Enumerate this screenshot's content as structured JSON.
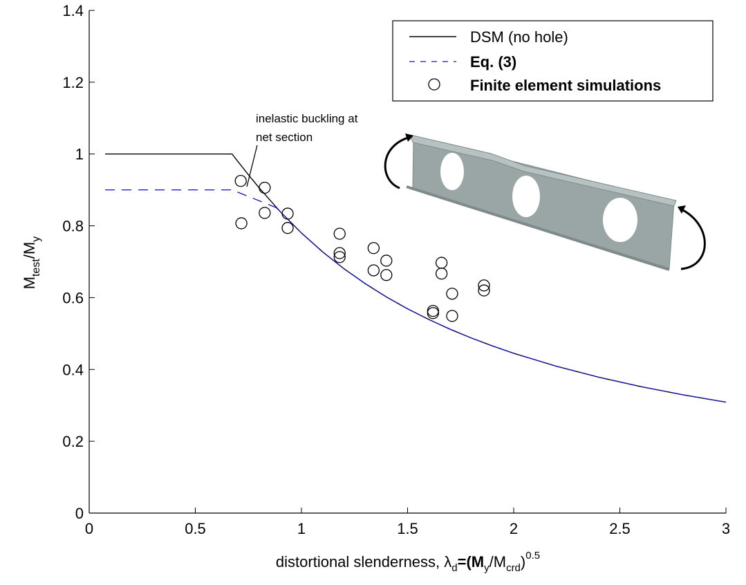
{
  "chart_data": {
    "type": "line",
    "title": "",
    "xlabel": "distortional slenderness, λ_d=(M_y/M_crd)^0.5",
    "xlabel_parts": {
      "main": "distortional slenderness, ",
      "lambda": "λ",
      "sub_d": "d",
      "eq": "=(M",
      "sub_y": "y",
      "slash": "/M",
      "sub_crd": "crd",
      "close": ")",
      "sup": "0.5"
    },
    "ylabel": "M_test/M_y",
    "ylabel_parts": {
      "m1": "M",
      "sub_test": "test",
      "slash": "/M",
      "sub_y": "y"
    },
    "xlim": [
      0,
      3
    ],
    "ylim": [
      0,
      1.4
    ],
    "xticks": [
      0,
      0.5,
      1,
      1.5,
      2,
      2.5,
      3
    ],
    "xtick_labels": [
      "0",
      "0.5",
      "1",
      "1.5",
      "2",
      "2.5",
      "3"
    ],
    "yticks": [
      0,
      0.2,
      0.4,
      0.6,
      0.8,
      1,
      1.2,
      1.4
    ],
    "ytick_labels": [
      "0",
      "0.2",
      "0.4",
      "0.6",
      "0.8",
      "1",
      "1.2",
      "1.4"
    ],
    "grid": false,
    "legend_position": "top-right",
    "legend": [
      "DSM (no hole)",
      "Eq. (3)",
      "Finite element simulations"
    ],
    "series": [
      {
        "name": "DSM (no hole)",
        "style": "solid",
        "color": "#000000",
        "x": [
          0.075,
          0.673,
          0.7,
          0.75,
          0.8,
          0.9,
          1.0,
          1.1,
          1.2,
          1.3,
          1.4,
          1.5,
          1.6,
          1.7,
          1.8,
          1.9,
          2.0,
          2.2,
          2.4,
          2.6,
          2.8,
          3.0
        ],
        "y": [
          1.0,
          1.0,
          0.9796,
          0.9422,
          0.9063,
          0.8395,
          0.78,
          0.7273,
          0.6806,
          0.6391,
          0.602,
          0.5689,
          0.5391,
          0.5121,
          0.4877,
          0.4654,
          0.445,
          0.4091,
          0.3785,
          0.3521,
          0.3291,
          0.3089
        ]
      },
      {
        "name": "Eq. (3)",
        "style": "dashed",
        "color": "#1010c0",
        "x": [
          0.075,
          0.673,
          0.88,
          0.9,
          1.0,
          1.1,
          1.2,
          1.3,
          1.4,
          1.5,
          1.6,
          1.7,
          1.8,
          1.9,
          2.0,
          2.2,
          2.4,
          2.6,
          2.8,
          3.0
        ],
        "y": [
          0.9,
          0.9,
          0.851,
          0.8395,
          0.78,
          0.7273,
          0.6806,
          0.6391,
          0.602,
          0.5689,
          0.5391,
          0.5121,
          0.4877,
          0.4654,
          0.445,
          0.4091,
          0.3785,
          0.3521,
          0.3291,
          0.3089
        ]
      },
      {
        "name": "Finite element simulations",
        "style": "markers-circle",
        "color": "#000000",
        "x": [
          0.714,
          0.717,
          0.827,
          0.827,
          0.935,
          0.935,
          1.18,
          1.18,
          1.18,
          1.34,
          1.34,
          1.4,
          1.4,
          1.62,
          1.62,
          1.66,
          1.66,
          1.71,
          1.71,
          1.86,
          1.86
        ],
        "y": [
          0.925,
          0.807,
          0.906,
          0.836,
          0.834,
          0.794,
          0.778,
          0.724,
          0.713,
          0.738,
          0.676,
          0.703,
          0.663,
          0.563,
          0.557,
          0.697,
          0.667,
          0.611,
          0.549,
          0.634,
          0.62
        ]
      }
    ],
    "annotations": [
      {
        "text_lines": [
          "inelastic buckling at",
          "net section"
        ],
        "points_to": [
          0.74,
          0.89
        ]
      }
    ]
  }
}
